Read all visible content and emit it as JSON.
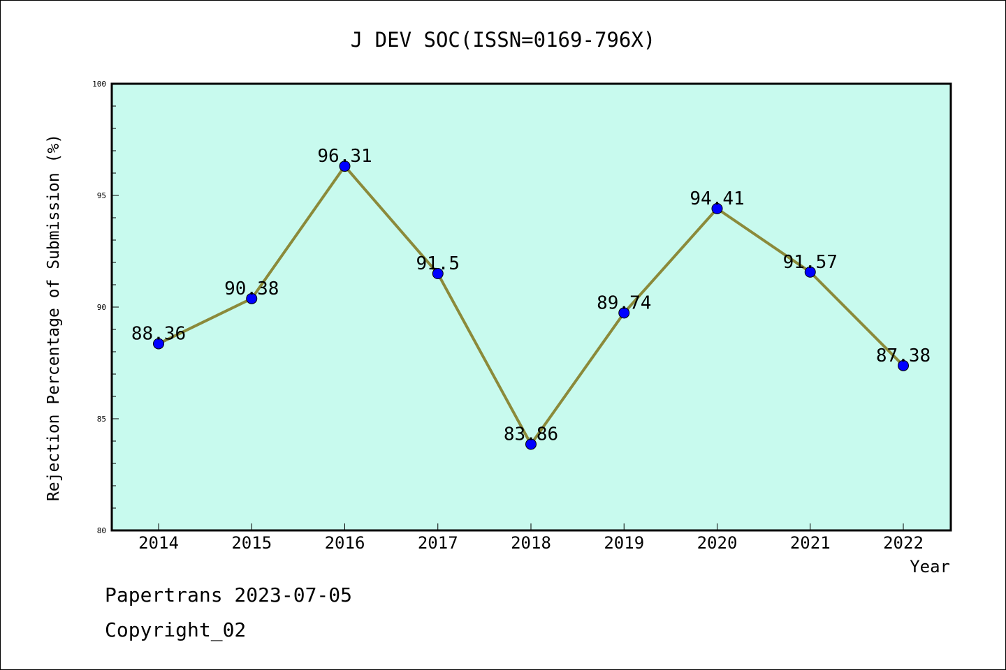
{
  "chart_data": {
    "type": "line",
    "title": "J DEV SOC(ISSN=0169-796X)",
    "xlabel": "Year",
    "ylabel": "Rejection Percentage of Submission (%)",
    "categories": [
      "2014",
      "2015",
      "2016",
      "2017",
      "2018",
      "2019",
      "2020",
      "2021",
      "2022"
    ],
    "values": [
      88.36,
      90.38,
      96.31,
      91.5,
      83.86,
      89.74,
      94.41,
      91.57,
      87.38
    ],
    "data_labels": [
      "88.36",
      "90.38",
      "96.31",
      "91.5",
      "83.86",
      "89.74",
      "94.41",
      "91.57",
      "87.38"
    ],
    "ylim": [
      80,
      100
    ],
    "yticks": [
      "80",
      "85",
      "90",
      "95",
      "100"
    ],
    "grid": false,
    "colors": {
      "plot_background": "#c8faee",
      "line": "#8b8a3a",
      "marker": "#0000ff"
    }
  },
  "footer": {
    "line1": "Papertrans 2023-07-05",
    "line2": "Copyright_02"
  }
}
